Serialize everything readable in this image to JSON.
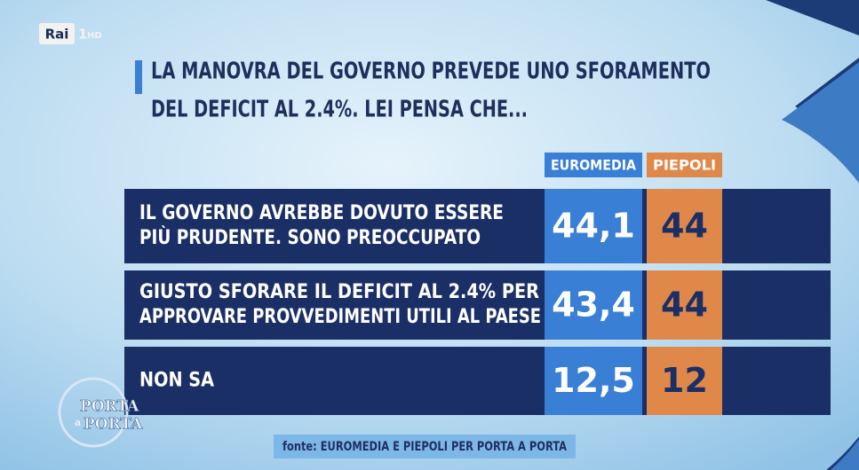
{
  "channel": {
    "name": "Rai",
    "number": "1",
    "quality": "HD"
  },
  "title": {
    "lines": [
      "LA MANOVRA DEL GOVERNO PREVEDE UNO SFORAMENTO",
      "DEL DEFICIT AL 2.4%. LEI PENSA CHE..."
    ]
  },
  "table": {
    "columns": [
      "EUROMEDIA",
      "PIEPOLI"
    ],
    "rows": [
      {
        "label": [
          "IL GOVERNO AVREBBE DOVUTO ESSERE",
          "PIÙ PRUDENTE. SONO PREOCCUPATO"
        ],
        "values": [
          "44,1",
          "44"
        ]
      },
      {
        "label": [
          "GIUSTO SFORARE IL DEFICIT AL 2.4% PER",
          "APPROVARE PROVVEDIMENTI UTILI AL PAESE"
        ],
        "values": [
          "43,4",
          "44"
        ]
      },
      {
        "label": [
          "NON SA"
        ],
        "values": [
          "12,5",
          "12"
        ]
      }
    ]
  },
  "source": "fonte: EUROMEDIA E PIEPOLI PER PORTA A PORTA",
  "program": {
    "lines": [
      "PORTA",
      "a",
      "PORTA"
    ]
  }
}
